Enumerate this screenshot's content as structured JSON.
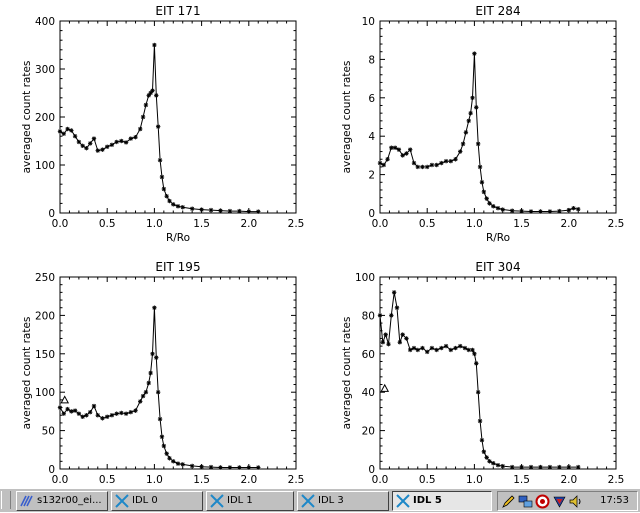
{
  "chart_data": [
    {
      "type": "line",
      "title": "EIT 171",
      "xlabel": "R/Ro",
      "ylabel": "averaged count rates",
      "xlim": [
        0,
        2.5
      ],
      "ylim": [
        0,
        400
      ],
      "xticks": [
        "0.0",
        "0.5",
        "1.0",
        "1.5",
        "2.0",
        "2.5"
      ],
      "yticks": [
        "0",
        "100",
        "200",
        "300",
        "400"
      ],
      "marker": "asterisk",
      "series": [
        {
          "x": [
            0.0,
            0.04,
            0.08,
            0.12,
            0.16,
            0.2,
            0.24,
            0.28,
            0.32,
            0.36,
            0.4,
            0.45,
            0.5,
            0.55,
            0.6,
            0.65,
            0.7,
            0.75,
            0.8,
            0.85,
            0.88,
            0.91,
            0.94,
            0.96,
            0.98,
            1.0,
            1.02,
            1.04,
            1.06,
            1.08,
            1.1,
            1.13,
            1.16,
            1.2,
            1.25,
            1.3,
            1.4,
            1.5,
            1.6,
            1.7,
            1.8,
            1.9,
            2.0,
            2.1
          ],
          "y": [
            170,
            165,
            175,
            172,
            160,
            148,
            140,
            135,
            145,
            155,
            130,
            132,
            138,
            142,
            148,
            150,
            147,
            155,
            158,
            175,
            200,
            225,
            245,
            250,
            255,
            350,
            245,
            180,
            110,
            75,
            50,
            35,
            25,
            18,
            14,
            12,
            9,
            7,
            6,
            5,
            4,
            4,
            3,
            3
          ]
        }
      ],
      "extra_points": []
    },
    {
      "type": "line",
      "title": "EIT 284",
      "xlabel": "R/Ro",
      "ylabel": "averaged count rates",
      "xlim": [
        0,
        2.5
      ],
      "ylim": [
        0,
        10
      ],
      "xticks": [
        "0.0",
        "0.5",
        "1.0",
        "1.5",
        "2.0",
        "2.5"
      ],
      "yticks": [
        "0",
        "2",
        "4",
        "6",
        "8",
        "10"
      ],
      "marker": "asterisk",
      "series": [
        {
          "x": [
            0.0,
            0.04,
            0.08,
            0.12,
            0.16,
            0.2,
            0.24,
            0.28,
            0.32,
            0.36,
            0.4,
            0.45,
            0.5,
            0.55,
            0.6,
            0.65,
            0.7,
            0.75,
            0.8,
            0.85,
            0.88,
            0.91,
            0.94,
            0.96,
            0.98,
            1.0,
            1.02,
            1.04,
            1.06,
            1.08,
            1.1,
            1.13,
            1.16,
            1.2,
            1.25,
            1.3,
            1.4,
            1.5,
            1.6,
            1.7,
            1.8,
            1.9,
            2.0,
            2.05,
            2.1
          ],
          "y": [
            2.6,
            2.5,
            2.8,
            3.4,
            3.4,
            3.3,
            3.0,
            3.1,
            3.3,
            2.6,
            2.4,
            2.4,
            2.4,
            2.5,
            2.5,
            2.6,
            2.7,
            2.7,
            2.8,
            3.2,
            3.6,
            4.2,
            4.8,
            5.2,
            6.0,
            8.3,
            5.5,
            3.6,
            2.4,
            1.6,
            1.1,
            0.75,
            0.5,
            0.35,
            0.25,
            0.18,
            0.12,
            0.1,
            0.08,
            0.08,
            0.08,
            0.1,
            0.15,
            0.25,
            0.2
          ]
        }
      ],
      "extra_points": []
    },
    {
      "type": "line",
      "title": "EIT 195",
      "xlabel": "",
      "ylabel": "averaged count rates",
      "xlim": [
        0,
        2.5
      ],
      "ylim": [
        0,
        250
      ],
      "xticks": [
        "0.0",
        "0.5",
        "1.0",
        "1.5",
        "2.0",
        "2.5"
      ],
      "yticks": [
        "0",
        "50",
        "100",
        "150",
        "200",
        "250"
      ],
      "marker": "asterisk",
      "series": [
        {
          "x": [
            0.0,
            0.04,
            0.08,
            0.12,
            0.16,
            0.2,
            0.24,
            0.28,
            0.32,
            0.36,
            0.4,
            0.45,
            0.5,
            0.55,
            0.6,
            0.65,
            0.7,
            0.75,
            0.8,
            0.85,
            0.88,
            0.91,
            0.94,
            0.96,
            0.98,
            1.0,
            1.02,
            1.04,
            1.06,
            1.08,
            1.1,
            1.13,
            1.16,
            1.2,
            1.25,
            1.3,
            1.4,
            1.5,
            1.6,
            1.7,
            1.8,
            1.9,
            2.0,
            2.1
          ],
          "y": [
            80,
            72,
            78,
            75,
            76,
            72,
            68,
            70,
            74,
            82,
            70,
            66,
            68,
            70,
            72,
            73,
            72,
            74,
            76,
            88,
            95,
            100,
            112,
            125,
            150,
            210,
            145,
            100,
            65,
            42,
            30,
            20,
            14,
            10,
            7,
            6,
            4,
            3,
            2.5,
            2,
            2,
            2,
            2,
            2
          ]
        }
      ],
      "extra_points": [
        {
          "x": 0.05,
          "y": 90,
          "marker": "triangle"
        }
      ]
    },
    {
      "type": "line",
      "title": "EIT 304",
      "xlabel": "",
      "ylabel": "averaged count rates",
      "xlim": [
        0,
        2.5
      ],
      "ylim": [
        0,
        100
      ],
      "xticks": [
        "0.0",
        "0.5",
        "1.0",
        "1.5",
        "2.0",
        "2.5"
      ],
      "yticks": [
        "0",
        "20",
        "40",
        "60",
        "80",
        "100"
      ],
      "marker": "asterisk",
      "series": [
        {
          "x": [
            0.0,
            0.03,
            0.06,
            0.09,
            0.12,
            0.15,
            0.18,
            0.21,
            0.24,
            0.28,
            0.32,
            0.36,
            0.4,
            0.45,
            0.5,
            0.55,
            0.6,
            0.65,
            0.7,
            0.75,
            0.8,
            0.85,
            0.9,
            0.94,
            0.98,
            1.0,
            1.02,
            1.04,
            1.06,
            1.08,
            1.1,
            1.13,
            1.16,
            1.2,
            1.25,
            1.3,
            1.4,
            1.5,
            1.6,
            1.7,
            1.8,
            1.9,
            2.0,
            2.1
          ],
          "y": [
            80,
            66,
            70,
            65,
            80,
            92,
            84,
            66,
            70,
            68,
            62,
            63,
            62,
            63,
            61,
            63,
            62,
            63,
            64,
            62,
            63,
            64,
            63,
            62,
            62,
            60,
            55,
            40,
            25,
            15,
            9,
            6,
            4,
            3,
            2,
            1.5,
            1,
            1,
            1,
            1,
            1,
            1,
            1,
            1
          ]
        }
      ],
      "extra_points": [
        {
          "x": 0.05,
          "y": 42,
          "marker": "triangle"
        }
      ]
    }
  ],
  "taskbar": {
    "buttons": [
      {
        "label": "s132r00_ei...",
        "icon": "idl-logo-icon"
      },
      {
        "label": "IDL 0",
        "icon": "idl-window-icon"
      },
      {
        "label": "IDL 1",
        "icon": "idl-window-icon"
      },
      {
        "label": "IDL 3",
        "icon": "idl-window-icon"
      },
      {
        "label": "IDL 5",
        "icon": "idl-window-icon",
        "active": true
      }
    ],
    "tray_icons": [
      "pen-icon",
      "network-icon",
      "record-icon",
      "shield-icon",
      "volume-icon"
    ],
    "clock": "17:53"
  }
}
